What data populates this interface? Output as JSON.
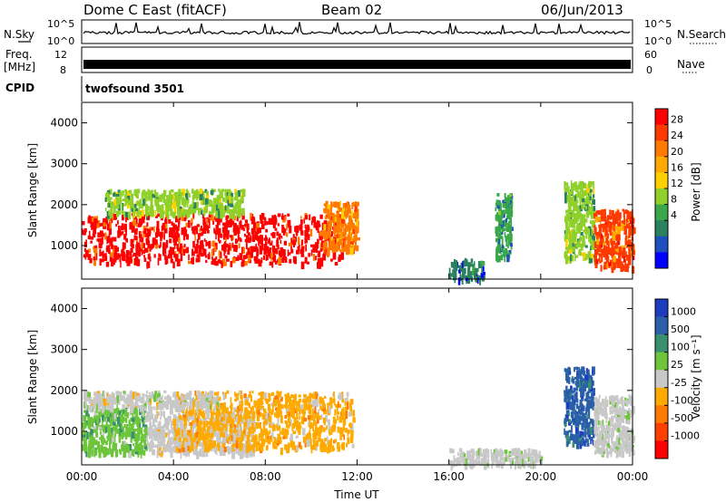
{
  "header": {
    "station": "Dome C East (fitACF)",
    "beam": "Beam 02",
    "date": "06/Jun/2013"
  },
  "side_labels": {
    "nsky": "N.Sky",
    "freq_line1": "Freq.",
    "freq_line2": "[MHz]",
    "cpid": "CPID",
    "nsearch": "N.Search",
    "nave": "Nave"
  },
  "strip_ticks": {
    "noise_left_top": "10^5",
    "noise_left_bottom": "10^0",
    "noise_right_top": "10^5",
    "noise_right_bottom": "10^0",
    "freq_left_top": "12",
    "freq_left_bottom": "8",
    "nave_right_top": "60",
    "nave_right_bottom": "0"
  },
  "cpid_text": "twofsound 3501",
  "panel_power": {
    "ylabel": "Slant Range [km]",
    "cbar_label": "Power [dB]",
    "cbar_ticks": [
      "28",
      "24",
      "20",
      "16",
      "12",
      "8",
      "4"
    ],
    "cbar_colors": [
      "#ff0000",
      "#ff3a00",
      "#ff7a00",
      "#ffaa00",
      "#ffd000",
      "#8fd02a",
      "#3aa84a",
      "#2b8060",
      "#2050c0",
      "#0000ff"
    ]
  },
  "panel_velocity": {
    "ylabel": "Slant Range [km]",
    "cbar_label": "Velocity [m s⁻¹]",
    "cbar_ticks": [
      "1000",
      "500",
      "100",
      "25",
      "-25",
      "-100",
      "-500",
      "-1000"
    ],
    "cbar_colors": [
      "#1e3cbe",
      "#2a60a8",
      "#3a8f70",
      "#6cc53a",
      "#c8c8c8",
      "#ffaa00",
      "#ff7a00",
      "#ff4000",
      "#ff0000"
    ]
  },
  "chart_data": {
    "type": "heatmap",
    "xlabel": "Time UT",
    "x_ticks": [
      "00:00",
      "04:00",
      "08:00",
      "12:00",
      "16:00",
      "20:00",
      "00:00"
    ],
    "xlim_hours": [
      0,
      24
    ],
    "y_ticks": [
      "1000",
      "2000",
      "3000",
      "4000"
    ],
    "ylim_km": [
      180,
      4500
    ],
    "power": {
      "units": "dB",
      "range": [
        0,
        30
      ],
      "regions": [
        {
          "t_start": 0.0,
          "t_end": 11.3,
          "r_min": 600,
          "r_max": 1800,
          "value": 27
        },
        {
          "t_start": 10.5,
          "t_end": 12.0,
          "r_min": 900,
          "r_max": 2100,
          "value": 22
        },
        {
          "t_start": 1.0,
          "t_end": 7.0,
          "r_min": 1800,
          "r_max": 2400,
          "value": 14
        },
        {
          "t_start": 16.0,
          "t_end": 17.5,
          "r_min": 200,
          "r_max": 700,
          "value": 6
        },
        {
          "t_start": 18.0,
          "t_end": 18.7,
          "r_min": 700,
          "r_max": 2300,
          "value": 9
        },
        {
          "t_start": 21.0,
          "t_end": 22.3,
          "r_min": 700,
          "r_max": 2600,
          "value": 14
        },
        {
          "t_start": 22.3,
          "t_end": 24.0,
          "r_min": 500,
          "r_max": 1900,
          "value": 26
        }
      ]
    },
    "velocity": {
      "units": "m s^-1",
      "range": [
        -1000,
        1000
      ],
      "regions": [
        {
          "t_start": 0.0,
          "t_end": 2.8,
          "r_min": 500,
          "r_max": 1600,
          "value": 150
        },
        {
          "t_start": 2.8,
          "t_end": 7.5,
          "r_min": 500,
          "r_max": 1500,
          "value": -100
        },
        {
          "t_start": 4.0,
          "t_end": 11.8,
          "r_min": 600,
          "r_max": 2000,
          "value": -300
        },
        {
          "t_start": 0.0,
          "t_end": 6.0,
          "r_min": 1600,
          "r_max": 2000,
          "value": 0
        },
        {
          "t_start": 16.0,
          "t_end": 20.0,
          "r_min": 200,
          "r_max": 600,
          "value": 40
        },
        {
          "t_start": 21.0,
          "t_end": 22.3,
          "r_min": 700,
          "r_max": 2600,
          "value": 600
        },
        {
          "t_start": 22.3,
          "t_end": 24.0,
          "r_min": 500,
          "r_max": 1900,
          "value": 50
        }
      ]
    }
  }
}
